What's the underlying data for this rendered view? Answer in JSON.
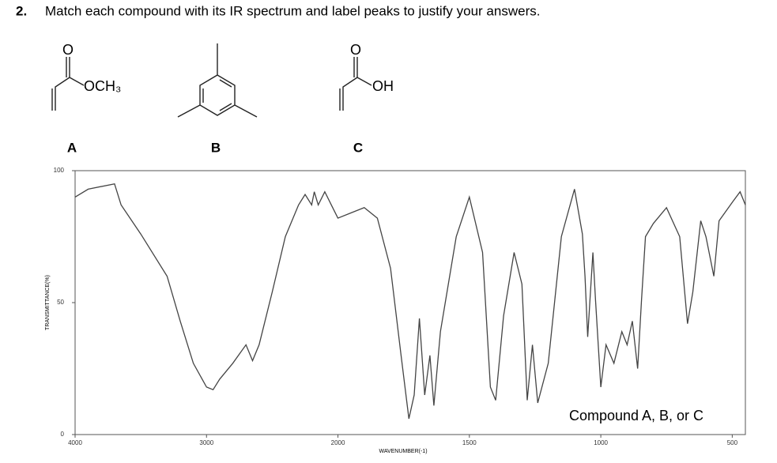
{
  "question": {
    "number": "2.",
    "text": "Match each compound with its IR spectrum and label peaks to justify your answers."
  },
  "structures": [
    {
      "label": "A",
      "atoms": [
        "O",
        "OCH₃"
      ]
    },
    {
      "label": "B"
    },
    {
      "label": "C",
      "atoms": [
        "O",
        "OH"
      ]
    }
  ],
  "chart_data": {
    "type": "line",
    "annotation": "Compound A, B, or C",
    "x_label": "WAVENUMBER(-1)",
    "y_label": "TRANSMITTANCE(%)",
    "x": [
      4000,
      3900,
      3700,
      3650,
      3500,
      3300,
      3200,
      3100,
      3000,
      2950,
      2900,
      2800,
      2700,
      2650,
      2600,
      2500,
      2400,
      2300,
      2250,
      2200,
      2180,
      2150,
      2100,
      2050,
      2000,
      1950,
      1900,
      1850,
      1800,
      1760,
      1730,
      1710,
      1690,
      1670,
      1650,
      1635,
      1610,
      1550,
      1500,
      1450,
      1420,
      1400,
      1370,
      1330,
      1300,
      1280,
      1260,
      1240,
      1200,
      1150,
      1100,
      1070,
      1060,
      1050,
      1030,
      1020,
      1000,
      980,
      950,
      920,
      900,
      880,
      860,
      845,
      830,
      800,
      750,
      700,
      670,
      650,
      620,
      600,
      570,
      550,
      500,
      470,
      450
    ],
    "series": [
      {
        "color": "#444444",
        "values": [
          90,
          93,
          95,
          87,
          76,
          60,
          43,
          27,
          18,
          17,
          21,
          27,
          34,
          28,
          34,
          54,
          75,
          87,
          91,
          87,
          92,
          87,
          92,
          87,
          82,
          84,
          86,
          82,
          63,
          30,
          6,
          15,
          44,
          15,
          30,
          11,
          39,
          75,
          90,
          69,
          18,
          13,
          45,
          69,
          57,
          13,
          34,
          12,
          27,
          75,
          93,
          76,
          60,
          37,
          69,
          51,
          18,
          34,
          27,
          39,
          34,
          43,
          25,
          51,
          75,
          80,
          86,
          75,
          42,
          54,
          81,
          75,
          60,
          81,
          88,
          92,
          87
        ]
      }
    ],
    "xlim": [
      4000,
      450
    ],
    "ylim": [
      0,
      100
    ],
    "xticks": [
      4000,
      3000,
      2000,
      1500,
      1000,
      500
    ],
    "yticks": [
      0,
      50,
      100
    ]
  }
}
